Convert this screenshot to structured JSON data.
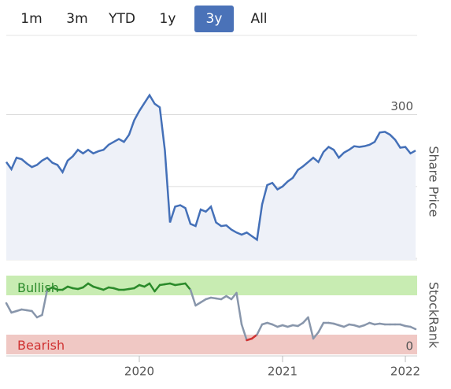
{
  "tabs": {
    "items": [
      "1m",
      "3m",
      "YTD",
      "1y",
      "3y",
      "All"
    ],
    "selected": 4
  },
  "chart_data": [
    {
      "type": "line",
      "y_axis_label": "Share Price",
      "color": "#4470b8",
      "fill": "#eef1f8",
      "values": [
        234,
        224,
        240,
        238,
        232,
        227,
        230,
        236,
        240,
        233,
        230,
        220,
        236,
        242,
        251,
        246,
        251,
        246,
        249,
        251,
        258,
        262,
        266,
        262,
        272,
        292,
        305,
        316,
        327,
        315,
        310,
        250,
        150,
        172,
        174,
        170,
        148,
        145,
        168,
        165,
        172,
        150,
        145,
        146,
        140,
        136,
        133,
        136,
        131,
        126,
        175,
        202,
        205,
        196,
        200,
        207,
        212,
        223,
        228,
        234,
        240,
        234,
        248,
        255,
        251,
        240,
        247,
        251,
        256,
        255,
        256,
        258,
        262,
        275,
        276,
        272,
        265,
        254,
        255,
        246,
        250
      ],
      "ylim": [
        98,
        410
      ],
      "yticks": [
        100,
        200,
        300
      ],
      "grid": true
    },
    {
      "type": "banded-line",
      "y_axis_label": "StockRank",
      "color": "#8896ab",
      "categories": [
        null,
        null,
        null,
        null,
        null,
        null,
        null,
        null,
        null,
        null,
        null,
        null,
        null,
        null,
        null,
        null,
        null,
        null,
        null,
        null,
        null,
        null,
        null,
        null,
        null,
        null,
        "2020",
        null,
        null,
        null,
        null,
        null,
        null,
        null,
        null,
        null,
        null,
        null,
        null,
        null,
        null,
        null,
        null,
        null,
        null,
        null,
        null,
        null,
        null,
        null,
        null,
        null,
        null,
        null,
        "2021",
        null,
        null,
        null,
        null,
        null,
        null,
        null,
        null,
        null,
        null,
        null,
        null,
        null,
        null,
        null,
        null,
        null,
        null,
        null,
        null,
        null,
        null,
        null,
        "2022",
        null,
        null
      ],
      "values": [
        65,
        53,
        55,
        57,
        56,
        55,
        47,
        50,
        82,
        85,
        82,
        82,
        86,
        84,
        83,
        85,
        90,
        86,
        84,
        82,
        85,
        84,
        82,
        82,
        83,
        84,
        88,
        86,
        90,
        80,
        88,
        89,
        90,
        88,
        89,
        90,
        82,
        62,
        66,
        70,
        72,
        71,
        70,
        74,
        70,
        78,
        38,
        18,
        20,
        25,
        38,
        40,
        38,
        35,
        37,
        35,
        37,
        36,
        40,
        47,
        20,
        28,
        40,
        40,
        39,
        37,
        35,
        38,
        37,
        35,
        37,
        40,
        38,
        39,
        38,
        38,
        38,
        38,
        36,
        35,
        32
      ],
      "ylim": [
        0,
        100
      ],
      "yticks": [
        0
      ],
      "bands": [
        {
          "label": "Bullish",
          "range": [
            75,
            100
          ],
          "color": "#c8ecb2",
          "line_color": "#2a8a2a"
        },
        {
          "label": "Bearish",
          "range": [
            0,
            25
          ],
          "color": "#f0c8c4",
          "line_color": "#d03232"
        }
      ]
    }
  ]
}
